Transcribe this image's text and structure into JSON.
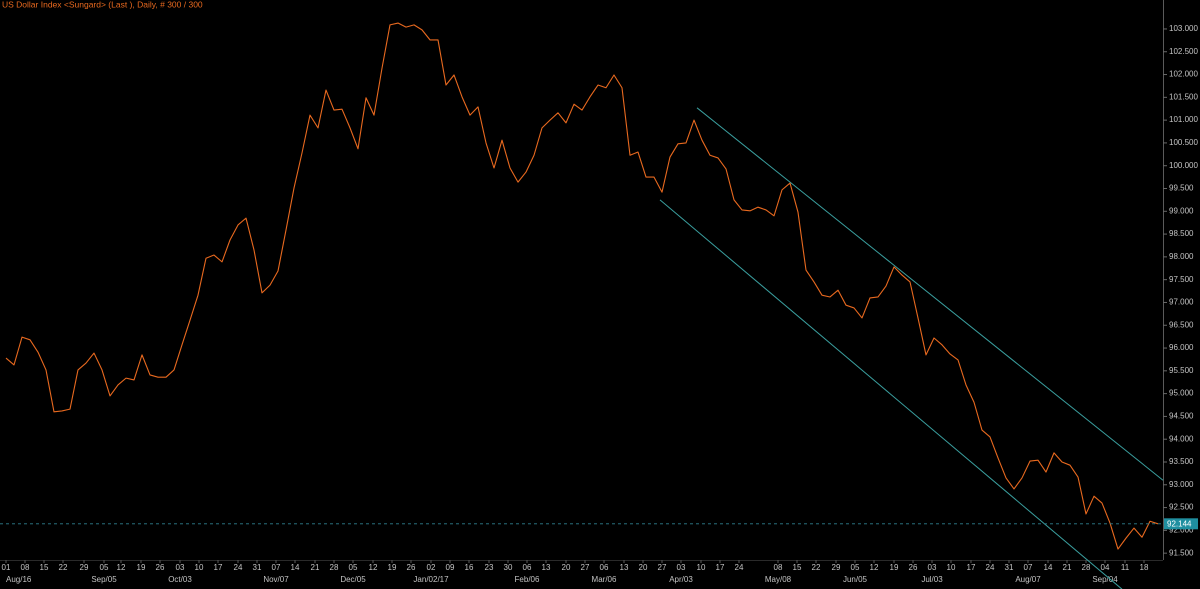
{
  "chart_data": {
    "type": "line",
    "title": "US Dollar Index <Sungard> (Last ), Daily, # 300 / 300",
    "series": [
      {
        "name": "US Dollar Index",
        "color": "#e8691f",
        "values": [
          95.78,
          95.63,
          96.24,
          96.18,
          95.91,
          95.52,
          94.6,
          94.62,
          94.66,
          95.52,
          95.67,
          95.89,
          95.52,
          94.95,
          95.19,
          95.34,
          95.3,
          95.85,
          95.41,
          95.36,
          95.36,
          95.52,
          96.07,
          96.61,
          97.16,
          97.97,
          98.04,
          97.89,
          98.37,
          98.7,
          98.85,
          98.15,
          97.21,
          97.38,
          97.69,
          98.59,
          99.51,
          100.28,
          101.11,
          100.83,
          101.66,
          101.22,
          101.24,
          100.83,
          100.37,
          101.49,
          101.11,
          102.14,
          103.09,
          103.13,
          103.04,
          103.09,
          102.98,
          102.76,
          102.76,
          101.77,
          101.99,
          101.51,
          101.11,
          101.29,
          100.5,
          99.95,
          100.56,
          99.95,
          99.64,
          99.86,
          100.23,
          100.83,
          101.0,
          101.16,
          100.94,
          101.35,
          101.22,
          101.51,
          101.77,
          101.71,
          101.99,
          101.71,
          100.23,
          100.3,
          99.75,
          99.75,
          99.42,
          100.19,
          100.48,
          100.5,
          101.0,
          100.56,
          100.23,
          100.17,
          99.93,
          99.25,
          99.03,
          99.01,
          99.09,
          99.03,
          98.9,
          99.47,
          99.62,
          98.98,
          97.71,
          97.45,
          97.16,
          97.12,
          97.27,
          96.94,
          96.88,
          96.66,
          97.1,
          97.12,
          97.36,
          97.78,
          97.6,
          97.45,
          96.66,
          95.85,
          96.22,
          96.07,
          95.87,
          95.74,
          95.19,
          94.81,
          94.2,
          94.05,
          93.59,
          93.15,
          92.91,
          93.15,
          93.52,
          93.54,
          93.28,
          93.7,
          93.5,
          93.43,
          93.17,
          92.36,
          92.75,
          92.6,
          92.16,
          91.59,
          91.83,
          92.05,
          91.85,
          92.2,
          92.144
        ]
      }
    ],
    "trend_lines": [
      {
        "color": "#3a9e9e",
        "x": [
          86.375,
          144.625
        ],
        "y": [
          101.27,
          93.1
        ]
      },
      {
        "color": "#3a9e9e",
        "x": [
          81.75,
          139.5
        ],
        "y": [
          99.25,
          90.71
        ]
      }
    ],
    "last_value_color": "#1f8fa0",
    "grid": false,
    "xlim": [
      -0.75,
      144.625
    ],
    "ylim": [
      91.35,
      103.35
    ],
    "yticks": [
      {
        "value": 91.5,
        "label": "91.500"
      },
      {
        "value": 92,
        "label": "92.000"
      },
      {
        "value": 92.5,
        "label": "92.500"
      },
      {
        "value": 93,
        "label": "93.000"
      },
      {
        "value": 93.5,
        "label": "93.500"
      },
      {
        "value": 94,
        "label": "94.000"
      },
      {
        "value": 94.5,
        "label": "94.500"
      },
      {
        "value": 95,
        "label": "95.000"
      },
      {
        "value": 95.5,
        "label": "95.500"
      },
      {
        "value": 96,
        "label": "96.000"
      },
      {
        "value": 96.5,
        "label": "96.500"
      },
      {
        "value": 97,
        "label": "97.000"
      },
      {
        "value": 97.5,
        "label": "97.500"
      },
      {
        "value": 98,
        "label": "98.000"
      },
      {
        "value": 98.5,
        "label": "98.500"
      },
      {
        "value": 99,
        "label": "99.000"
      },
      {
        "value": 99.5,
        "label": "99.500"
      },
      {
        "value": 100,
        "label": "100.000"
      },
      {
        "value": 100.5,
        "label": "100.500"
      },
      {
        "value": 101,
        "label": "101.000"
      },
      {
        "value": 101.5,
        "label": "101.500"
      },
      {
        "value": 102,
        "label": "102.000"
      },
      {
        "value": 102.5,
        "label": "102.500"
      },
      {
        "value": 103,
        "label": "103.000"
      }
    ],
    "xticks": [
      {
        "value": 0,
        "label": "01"
      },
      {
        "value": 2.375,
        "label": "08"
      },
      {
        "value": 4.75,
        "label": "15"
      },
      {
        "value": 7.125,
        "label": "22"
      },
      {
        "value": 9.75,
        "label": "29"
      },
      {
        "value": 12.25,
        "label": "05"
      },
      {
        "value": 14.375,
        "label": "12"
      },
      {
        "value": 16.875,
        "label": "19"
      },
      {
        "value": 19.25,
        "label": "26"
      },
      {
        "value": 21.75,
        "label": "03"
      },
      {
        "value": 24.125,
        "label": "10"
      },
      {
        "value": 26.5,
        "label": "17"
      },
      {
        "value": 29,
        "label": "24"
      },
      {
        "value": 31.375,
        "label": "31"
      },
      {
        "value": 33.75,
        "label": "07"
      },
      {
        "value": 36.125,
        "label": "14"
      },
      {
        "value": 38.625,
        "label": "21"
      },
      {
        "value": 41,
        "label": "28"
      },
      {
        "value": 43.375,
        "label": "05"
      },
      {
        "value": 45.875,
        "label": "12"
      },
      {
        "value": 48.25,
        "label": "19"
      },
      {
        "value": 50.625,
        "label": "26"
      },
      {
        "value": 53.125,
        "label": "02"
      },
      {
        "value": 55.5,
        "label": "09"
      },
      {
        "value": 57.875,
        "label": "16"
      },
      {
        "value": 60.375,
        "label": "23"
      },
      {
        "value": 62.75,
        "label": "30"
      },
      {
        "value": 65.125,
        "label": "06"
      },
      {
        "value": 67.5,
        "label": "13"
      },
      {
        "value": 70,
        "label": "20"
      },
      {
        "value": 72.375,
        "label": "27"
      },
      {
        "value": 74.75,
        "label": "06"
      },
      {
        "value": 77.25,
        "label": "13"
      },
      {
        "value": 79.625,
        "label": "20"
      },
      {
        "value": 82,
        "label": "27"
      },
      {
        "value": 84.375,
        "label": "03"
      },
      {
        "value": 86.875,
        "label": "10"
      },
      {
        "value": 89.25,
        "label": "17"
      },
      {
        "value": 91.625,
        "label": "24"
      },
      {
        "value": 96.5,
        "label": "08"
      },
      {
        "value": 98.875,
        "label": "15"
      },
      {
        "value": 101.25,
        "label": "22"
      },
      {
        "value": 103.75,
        "label": "29"
      },
      {
        "value": 106.125,
        "label": "05"
      },
      {
        "value": 108.5,
        "label": "12"
      },
      {
        "value": 111,
        "label": "19"
      },
      {
        "value": 113.375,
        "label": "26"
      },
      {
        "value": 115.75,
        "label": "03"
      },
      {
        "value": 118.125,
        "label": "10"
      },
      {
        "value": 120.625,
        "label": "17"
      },
      {
        "value": 123,
        "label": "24"
      },
      {
        "value": 125.375,
        "label": "31"
      },
      {
        "value": 127.75,
        "label": "07"
      },
      {
        "value": 130.25,
        "label": "14"
      },
      {
        "value": 132.625,
        "label": "21"
      },
      {
        "value": 135,
        "label": "28"
      },
      {
        "value": 137.375,
        "label": "04"
      },
      {
        "value": 139.875,
        "label": "11"
      },
      {
        "value": 142.25,
        "label": "18"
      }
    ],
    "month_ticks": [
      {
        "value": 0,
        "label": "Aug/16"
      },
      {
        "value": 12.25,
        "label": "Sep/05"
      },
      {
        "value": 21.75,
        "label": "Oct/03"
      },
      {
        "value": 33.75,
        "label": "Nov/07"
      },
      {
        "value": 43.375,
        "label": "Dec/05"
      },
      {
        "value": 53.125,
        "label": "Jan/02/17"
      },
      {
        "value": 65.125,
        "label": "Feb/06"
      },
      {
        "value": 74.75,
        "label": "Mar/06"
      },
      {
        "value": 84.375,
        "label": "Apr/03"
      },
      {
        "value": 96.5,
        "label": "May/08"
      },
      {
        "value": 106.125,
        "label": "Jun/05"
      },
      {
        "value": 115.75,
        "label": "Jul/03"
      },
      {
        "value": 127.75,
        "label": "Aug/07"
      },
      {
        "value": 137.375,
        "label": "Sep/04"
      }
    ]
  }
}
